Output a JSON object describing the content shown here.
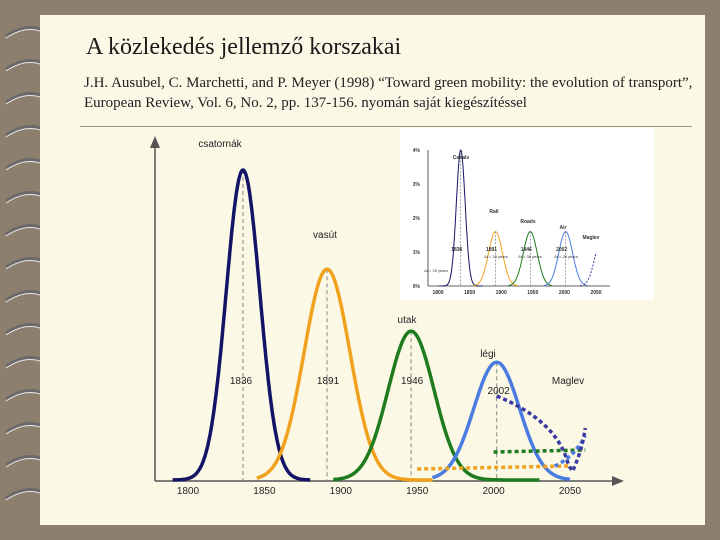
{
  "title": "A közlekedés jellemző korszakai",
  "subtitle": " J.H. Ausubel, C. Marchetti, and P. Meyer  (1998) “Toward green mobility: the evolution of transport”, European Review, Vol. 6, No. 2, pp. 137-156. nyomán saját kiegészítéssel",
  "chart_data": {
    "type": "line",
    "x_ticks": [
      "1800",
      "1850",
      "1900",
      "1950",
      "2000",
      "2050"
    ],
    "xlim": [
      1800,
      2060
    ],
    "series": [
      {
        "name": "csatornák",
        "color": "#141466",
        "peak_year": 1836,
        "peak_value": 1.0,
        "width": 11,
        "tail": null
      },
      {
        "name": "vasút",
        "color": "#f0a21e",
        "peak_year": 1891,
        "peak_value": 0.68,
        "width": 15,
        "tail": "#f0a21e"
      },
      {
        "name": "utak",
        "color": "#1e7b1e",
        "peak_year": 1946,
        "peak_value": 0.48,
        "width": 15,
        "tail": "#1e7b1e"
      },
      {
        "name": "légi",
        "color": "#4a7be0",
        "peak_year": 2002,
        "peak_value": 0.38,
        "width": 15,
        "tail": "#4a7be0"
      },
      {
        "name": "Maglev",
        "color": "#3a3aa0",
        "peak_year": null,
        "peak_value": null,
        "width": 15,
        "tail": null
      }
    ],
    "peak_labels": [
      "1836",
      "1891",
      "1946",
      "2002"
    ],
    "inset": {
      "y_ticks": [
        "4%",
        "3%",
        "2%",
        "1%",
        "0%"
      ],
      "x_ticks": [
        "1800",
        "1850",
        "1900",
        "1950",
        "2000",
        "2050"
      ],
      "series_labels": [
        "Canals",
        "Rail",
        "Roads",
        "Air",
        "Maglev"
      ],
      "peak_labels": [
        "1836",
        "1891",
        "1946",
        "2002"
      ],
      "width_labels": [
        "Δt = 26 years",
        "Δt = 33 years",
        "Δt = 36 years",
        "Δt = 28 years"
      ]
    }
  }
}
